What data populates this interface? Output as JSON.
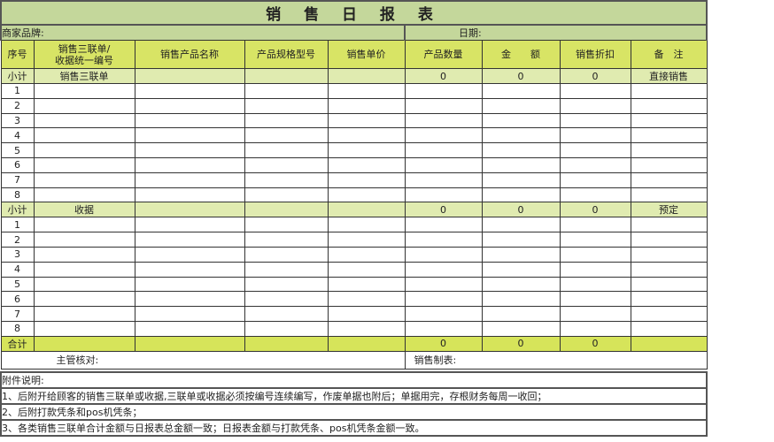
{
  "title": "销 售 日 报 表",
  "brand_label": "商家品牌:",
  "date_label": "日期:",
  "headers": [
    "序号",
    "销售三联单/\n收据统一编号",
    "销售产品名称",
    "产品规格型号",
    "销售单价",
    "产品数量",
    "金　　额",
    "销售折扣",
    "备　注"
  ],
  "sections": [
    {
      "label": "小计",
      "name": "销售三联单",
      "qty": "0",
      "amount": "0",
      "discount": "0",
      "remark": "直接销售",
      "rows": [
        "1",
        "2",
        "3",
        "4",
        "5",
        "6",
        "7",
        "8"
      ]
    },
    {
      "label": "小计",
      "name": "收据",
      "qty": "0",
      "amount": "0",
      "discount": "0",
      "remark": "预定",
      "rows": [
        "1",
        "2",
        "3",
        "4",
        "5",
        "6",
        "7",
        "8"
      ]
    }
  ],
  "total": {
    "label": "合计",
    "qty": "0",
    "amount": "0",
    "discount": "0"
  },
  "signature": {
    "supervisor": "主管核对:",
    "maker": "销售制表:"
  },
  "notes": {
    "title": "附件说明:",
    "items": [
      "1、后附开给顾客的销售三联单或收据,三联单或收据必须按编号连续编写，作废单据也附后；单据用完，存根财务每周一收回；",
      "2、后附打款凭条和pos机凭条；",
      "3、各类销售三联单合计金额与日报表总金额一致；日报表金额与打款凭条、pos机凭条金额一致。"
    ]
  }
}
